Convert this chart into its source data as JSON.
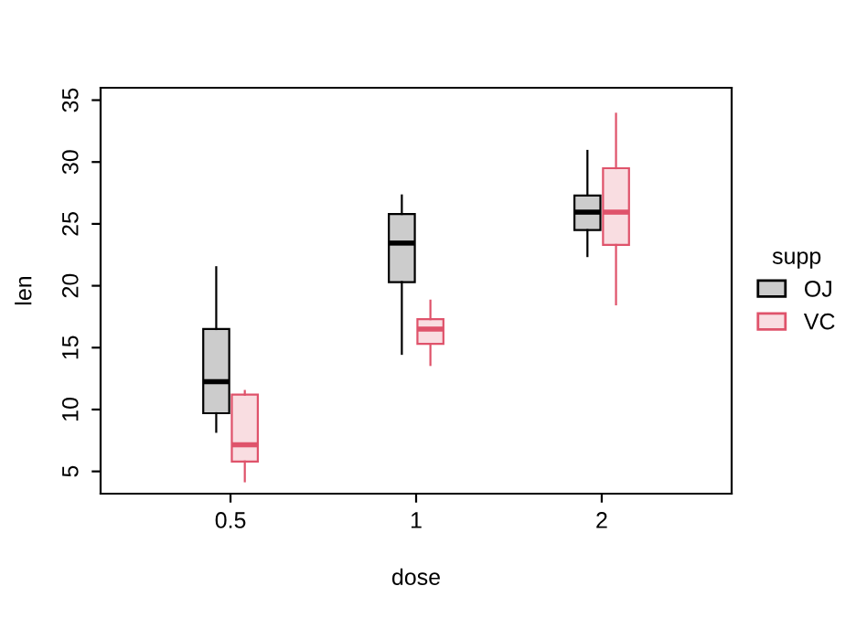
{
  "chart_data": {
    "type": "box",
    "xlabel": "dose",
    "ylabel": "len",
    "legend_title": "supp",
    "legend": "right",
    "grid": false,
    "categories": [
      "0.5",
      "1",
      "2"
    ],
    "ylim": [
      3.2,
      36
    ],
    "yticks": [
      5,
      10,
      15,
      20,
      25,
      30,
      35
    ],
    "series": [
      {
        "name": "OJ",
        "color": "#000000",
        "boxes": [
          {
            "low": 8.2,
            "q1": 9.7,
            "median": 12.25,
            "q3": 16.5,
            "high": 21.5
          },
          {
            "low": 14.5,
            "q1": 20.3,
            "median": 23.45,
            "q3": 25.8,
            "high": 27.3
          },
          {
            "low": 22.4,
            "q1": 24.5,
            "median": 25.95,
            "q3": 27.3,
            "high": 30.9
          }
        ]
      },
      {
        "name": "VC",
        "color": "#df536b",
        "boxes": [
          {
            "low": 4.2,
            "q1": 5.8,
            "median": 7.15,
            "q3": 11.2,
            "high": 11.5
          },
          {
            "low": 13.6,
            "q1": 15.3,
            "median": 16.5,
            "q3": 17.3,
            "high": 18.8
          },
          {
            "low": 18.5,
            "q1": 23.3,
            "median": 25.95,
            "q3": 29.5,
            "high": 33.9
          }
        ]
      }
    ]
  }
}
